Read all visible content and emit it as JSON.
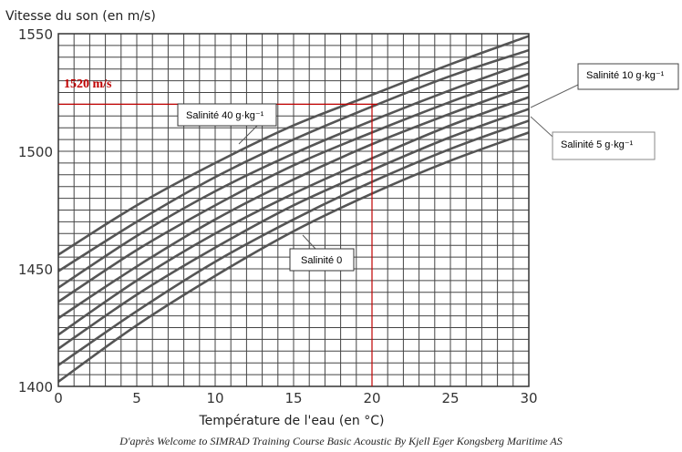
{
  "chart_data": {
    "type": "line",
    "ylabel": "Vitesse du son (en m/s)",
    "xlabel": "Température de l'eau (en °C)",
    "xlim": [
      0,
      30
    ],
    "ylim": [
      1400,
      1550
    ],
    "x_ticks": [
      "0",
      "5",
      "10",
      "15",
      "20",
      "25",
      "30"
    ],
    "y_ticks": [
      "1400",
      "1450",
      "1500",
      "1550"
    ],
    "grid": true,
    "series": [
      {
        "name": "Salinité 0",
        "x": [
          0,
          5,
          10,
          15,
          20,
          25,
          30
        ],
        "y": [
          1402,
          1426,
          1447,
          1466,
          1482,
          1496,
          1508
        ]
      },
      {
        "name": "Salinité 5 g·kg⁻¹",
        "x": [
          0,
          5,
          10,
          15,
          20,
          25,
          30
        ],
        "y": [
          1409,
          1432,
          1453,
          1471,
          1487,
          1501,
          1513
        ]
      },
      {
        "x": [
          0,
          5,
          10,
          15,
          20,
          25,
          30
        ],
        "y": [
          1416,
          1439,
          1459,
          1477,
          1492,
          1506,
          1518
        ]
      },
      {
        "name": "Salinité 10 g·kg⁻¹",
        "x": [
          0,
          5,
          10,
          15,
          20,
          25,
          30
        ],
        "y": [
          1422,
          1445,
          1465,
          1482,
          1497,
          1511,
          1523
        ]
      },
      {
        "x": [
          0,
          5,
          10,
          15,
          20,
          25,
          30
        ],
        "y": [
          1429,
          1451,
          1471,
          1488,
          1503,
          1516,
          1528
        ]
      },
      {
        "x": [
          0,
          5,
          10,
          15,
          20,
          25,
          30
        ],
        "y": [
          1436,
          1458,
          1477,
          1494,
          1508,
          1521,
          1533
        ]
      },
      {
        "x": [
          0,
          5,
          10,
          15,
          20,
          25,
          30
        ],
        "y": [
          1442,
          1464,
          1483,
          1499,
          1513,
          1526,
          1538
        ]
      },
      {
        "x": [
          0,
          5,
          10,
          15,
          20,
          25,
          30
        ],
        "y": [
          1449,
          1470,
          1489,
          1505,
          1519,
          1532,
          1543
        ]
      },
      {
        "name": "Salinité 40 g·kg⁻¹",
        "x": [
          0,
          5,
          10,
          15,
          20,
          25,
          30
        ],
        "y": [
          1456,
          1477,
          1495,
          1511,
          1524,
          1537,
          1549
        ]
      }
    ],
    "annotations": {
      "red_label": "1520 m/s",
      "red_guide": {
        "x": 20,
        "y": 1520
      },
      "label_salinite_40": "Salinité 40 g·kg⁻¹",
      "label_salinite_10": "Salinité 10 g·kg⁻¹",
      "label_salinite_5": "Salinité 5 g·kg⁻¹",
      "label_salinite_0": "Salinité 0"
    }
  },
  "colors": {
    "curve": "#555555",
    "grid": "#444444",
    "annotation_red": "#c00000"
  },
  "caption": "D'après Welcome to SIMRAD Training Course Basic Acoustic By Kjell Eger Kongsberg Maritime AS"
}
